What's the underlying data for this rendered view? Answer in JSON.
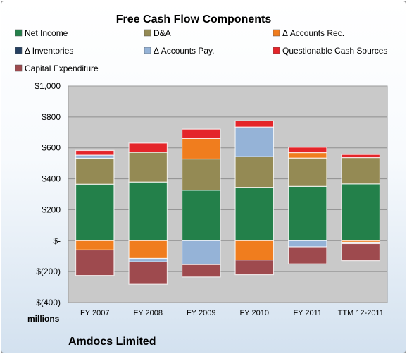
{
  "chart_data": {
    "type": "bar",
    "stacked": true,
    "title": "Free Cash Flow Components",
    "units_label": "millions",
    "company": "Amdocs Limited",
    "categories": [
      "FY 2007",
      "FY 2008",
      "FY 2009",
      "FY 2010",
      "FY 2011",
      "TTM 12-2011"
    ],
    "ylim": [
      -400,
      1000
    ],
    "yticks": [
      1000,
      800,
      600,
      400,
      200,
      0,
      -200,
      -400
    ],
    "ytick_labels": [
      "$1,000",
      "$800",
      "$600",
      "$400",
      "$200",
      "$-",
      "$(200)",
      "$(400)"
    ],
    "grid": true,
    "legend_position": "top",
    "series": [
      {
        "name": "Net Income",
        "color": "#23804a",
        "values": [
          365,
          379,
          326,
          345,
          351,
          367
        ]
      },
      {
        "name": "D&A",
        "color": "#948a54",
        "values": [
          168,
          192,
          202,
          198,
          183,
          170
        ]
      },
      {
        "name": "Δ Accounts Rec.",
        "color": "#f07d1e",
        "values": [
          -60,
          -115,
          133,
          -125,
          35,
          -10
        ]
      },
      {
        "name": "Δ Inventories",
        "color": "#254061",
        "values": [
          0,
          0,
          0,
          0,
          0,
          0
        ]
      },
      {
        "name": "Δ Accounts Pay.",
        "color": "#95b3d7",
        "values": [
          20,
          -22,
          -155,
          192,
          -40,
          -9
        ]
      },
      {
        "name": "Questionable Cash Sources",
        "color": "#e4252a",
        "values": [
          30,
          60,
          60,
          40,
          35,
          20
        ]
      },
      {
        "name": "Capital Expenditure",
        "color": "#9e4a4e",
        "values": [
          -165,
          -145,
          -80,
          -95,
          -110,
          -110
        ]
      }
    ]
  }
}
